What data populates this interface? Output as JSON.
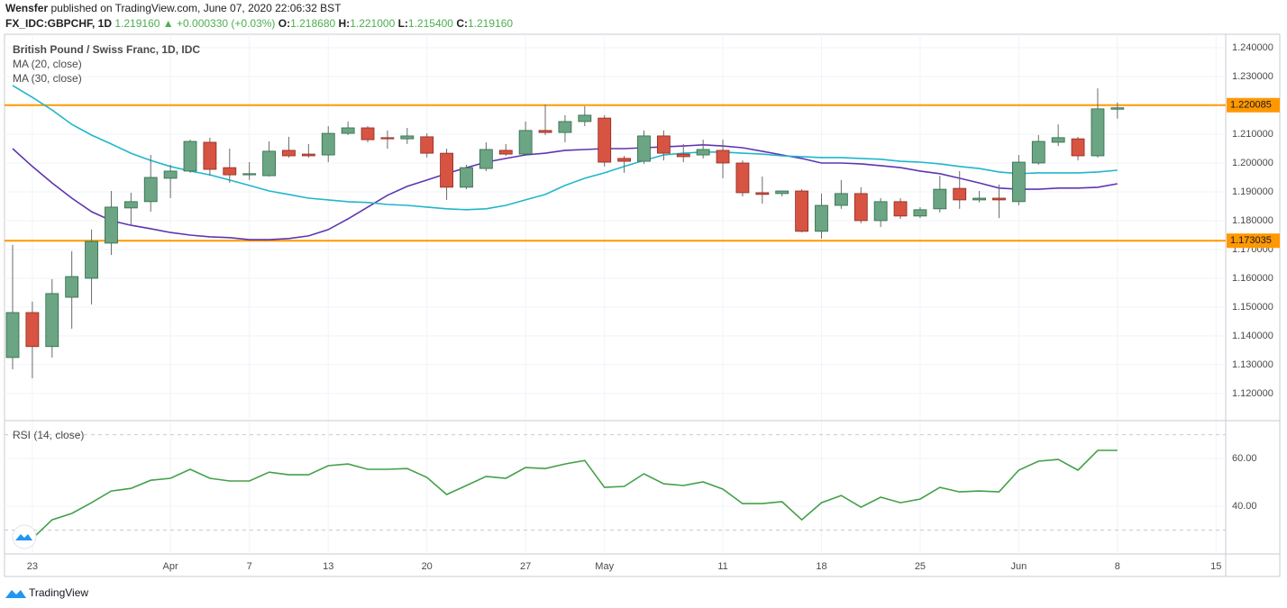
{
  "header": {
    "author": "Wensfer",
    "published": "published on TradingView.com, June 07, 2020 22:06:32 BST",
    "symbol": "FX_IDC:GBPCHF, 1D",
    "last": "1.219160",
    "arrow": "▲",
    "change": "+0.000330 (+0.03%)",
    "ohlc": [
      {
        "key": "O:",
        "value": "1.218680"
      },
      {
        "key": "H:",
        "value": "1.221000"
      },
      {
        "key": "L:",
        "value": "1.215400"
      },
      {
        "key": "C:",
        "value": "1.219160"
      }
    ]
  },
  "footer": "TradingView",
  "chart_data": [
    {
      "type": "candlestick",
      "title": "British Pound / Swiss Franc, 1D, IDC",
      "up_color": "#6ba583",
      "down_color": "#d75442",
      "categories": [
        null,
        "23",
        null,
        null,
        null,
        null,
        null,
        null,
        "Apr",
        null,
        null,
        null,
        "7",
        null,
        null,
        null,
        "13",
        null,
        null,
        null,
        null,
        "20",
        null,
        null,
        null,
        null,
        "27",
        null,
        null,
        null,
        "May",
        null,
        null,
        null,
        null,
        null,
        "11",
        null,
        null,
        null,
        null,
        "18",
        null,
        null,
        null,
        null,
        "25",
        null,
        null,
        null,
        null,
        "Jun",
        null,
        null,
        null,
        null,
        "8",
        null,
        null,
        null,
        null,
        "15"
      ],
      "open": [
        1.1325,
        1.1481,
        1.1363,
        1.1534,
        1.16,
        1.1722,
        1.1844,
        1.1866,
        1.1947,
        1.1972,
        1.2072,
        1.1984,
        1.1959,
        1.1956,
        1.2044,
        1.2031,
        1.2028,
        1.2103,
        1.2122,
        1.2088,
        1.2084,
        1.2091,
        1.2034,
        1.1916,
        1.1981,
        1.2044,
        1.2031,
        1.2113,
        1.2106,
        1.2144,
        1.2156,
        1.2016,
        1.2006,
        1.2094,
        1.2031,
        1.2028,
        1.2044,
        1.2,
        1.1897,
        1.1894,
        1.1903,
        1.1763,
        1.1853,
        1.1894,
        1.18,
        1.1866,
        1.1816,
        1.1841,
        1.1912,
        1.1872,
        1.1878,
        1.1866,
        1.2,
        1.2072,
        1.2084,
        1.2025,
        1.21868,
        null,
        null,
        null,
        null,
        null
      ],
      "high": [
        1.1716,
        1.1519,
        1.1597,
        1.1694,
        1.1769,
        1.1903,
        1.1897,
        1.2028,
        1.1994,
        1.2081,
        1.2088,
        1.205,
        1.2003,
        1.2075,
        1.2091,
        1.2066,
        1.2128,
        1.2144,
        1.2128,
        1.2113,
        1.2122,
        1.2103,
        1.205,
        1.1994,
        1.2072,
        1.2066,
        1.2144,
        1.2203,
        1.2166,
        1.2197,
        1.2166,
        1.2025,
        1.2113,
        1.2113,
        1.2066,
        1.2081,
        1.2081,
        1.2009,
        1.1953,
        1.1903,
        1.1909,
        1.1894,
        1.1941,
        1.1916,
        1.1878,
        1.1878,
        1.1847,
        1.1956,
        1.1972,
        1.1903,
        1.1925,
        1.2028,
        1.2097,
        1.2134,
        1.2091,
        1.2259,
        1.221,
        null,
        null,
        null,
        null,
        null
      ],
      "low": [
        1.1284,
        1.1253,
        1.1325,
        1.1425,
        1.1509,
        1.1681,
        1.1784,
        1.1831,
        1.1878,
        1.1966,
        1.1956,
        1.1931,
        1.1941,
        1.1953,
        1.2019,
        1.2019,
        1.2003,
        1.2097,
        1.2072,
        1.205,
        1.2066,
        1.2019,
        1.1872,
        1.1909,
        1.1972,
        1.2025,
        1.2028,
        1.2097,
        1.2072,
        1.2128,
        1.1988,
        1.1966,
        1.1997,
        1.2009,
        1.2003,
        1.2016,
        1.1947,
        1.1884,
        1.1859,
        1.1884,
        1.1759,
        1.1738,
        1.1841,
        1.1791,
        1.1778,
        1.1806,
        1.1809,
        1.1828,
        1.1841,
        1.1863,
        1.1809,
        1.1853,
        1.1994,
        1.2059,
        1.2009,
        1.2019,
        1.2154,
        null,
        null,
        null,
        null,
        null
      ],
      "close": [
        1.1481,
        1.1363,
        1.1547,
        1.1606,
        1.1728,
        1.1847,
        1.1866,
        1.195,
        1.1972,
        1.2075,
        1.1978,
        1.1959,
        1.1963,
        1.2041,
        1.2025,
        1.2025,
        1.2103,
        1.2122,
        1.2081,
        1.2084,
        1.2094,
        1.2034,
        1.1916,
        1.1984,
        1.2047,
        1.2031,
        1.2113,
        1.2106,
        1.2144,
        1.2166,
        1.2003,
        1.2006,
        1.2094,
        1.2034,
        1.2022,
        1.2047,
        1.2,
        1.1897,
        1.1891,
        1.1903,
        1.1763,
        1.1853,
        1.1894,
        1.18,
        1.1866,
        1.1816,
        1.1838,
        1.1909,
        1.1872,
        1.1878,
        1.1872,
        1.2003,
        1.2075,
        1.2088,
        1.2025,
        1.2188,
        1.21916,
        null,
        null,
        null,
        null,
        null
      ],
      "series": [
        {
          "name": "MA (20, close)",
          "color": "#5e35b1",
          "values": [
            1.205,
            1.1988,
            1.1931,
            1.1878,
            1.1831,
            1.18,
            1.1784,
            1.1772,
            1.1759,
            1.175,
            1.1744,
            1.1741,
            1.1734,
            1.1734,
            1.1738,
            1.1747,
            1.1769,
            1.1806,
            1.1847,
            1.1888,
            1.1919,
            1.1941,
            1.1963,
            1.1984,
            1.2003,
            1.2016,
            1.2028,
            1.2034,
            1.2044,
            1.2047,
            1.205,
            1.205,
            1.2053,
            1.2056,
            1.2059,
            1.2063,
            1.2059,
            1.2053,
            1.2041,
            1.2028,
            1.2016,
            1.2,
            1.2,
            1.1997,
            1.1991,
            1.1984,
            1.1972,
            1.1963,
            1.1947,
            1.1931,
            1.1913,
            1.1909,
            1.1909,
            1.1913,
            1.1913,
            1.1916,
            1.1928,
            null,
            null,
            null,
            null,
            null
          ]
        },
        {
          "name": "MA (30, close)",
          "color": "#1fb6cc",
          "values": [
            1.2269,
            1.2228,
            1.2184,
            1.2134,
            1.2097,
            1.2066,
            1.2034,
            1.2009,
            1.1988,
            1.1972,
            1.1959,
            1.1941,
            1.1922,
            1.1903,
            1.1891,
            1.1878,
            1.1872,
            1.1866,
            1.1863,
            1.1856,
            1.1853,
            1.1847,
            1.1841,
            1.1838,
            1.1841,
            1.1853,
            1.1872,
            1.1891,
            1.1922,
            1.1947,
            1.1966,
            1.1988,
            1.2009,
            1.2028,
            1.2034,
            1.2038,
            1.2038,
            1.2034,
            1.2031,
            1.2025,
            1.2022,
            1.2019,
            1.2019,
            1.2016,
            1.2013,
            1.2006,
            1.2003,
            1.1997,
            1.1988,
            1.1981,
            1.1969,
            1.1963,
            1.1966,
            1.1966,
            1.1966,
            1.1969,
            1.1975,
            null,
            null,
            null,
            null,
            null
          ]
        }
      ],
      "levels": [
        1.220085,
        1.173035
      ],
      "level_color": "#ff9800",
      "ylim": [
        1.1109,
        1.2447
      ],
      "yticks": [
        {
          "value": 1.12,
          "label": "1.120000"
        },
        {
          "value": 1.13,
          "label": "1.130000"
        },
        {
          "value": 1.14,
          "label": "1.140000"
        },
        {
          "value": 1.15,
          "label": "1.150000"
        },
        {
          "value": 1.16,
          "label": "1.160000"
        },
        {
          "value": 1.17,
          "label": "1.170000"
        },
        {
          "value": 1.18,
          "label": "1.180000"
        },
        {
          "value": 1.19,
          "label": "1.190000"
        },
        {
          "value": 1.2,
          "label": "1.200000"
        },
        {
          "value": 1.21,
          "label": "1.210000"
        },
        {
          "value": 1.22,
          "label": "1.220000"
        },
        {
          "value": 1.23,
          "label": "1.230000"
        },
        {
          "value": 1.24,
          "label": "1.240000"
        }
      ],
      "grid": true
    },
    {
      "type": "line",
      "title": "RSI (14, close)",
      "color": "#43a047",
      "values": [
        null,
        26.4,
        34.3,
        37,
        41.5,
        46.4,
        47.5,
        50.9,
        51.7,
        55.5,
        51.7,
        50.6,
        50.6,
        54.3,
        53.2,
        53.2,
        57,
        57.7,
        55.5,
        55.5,
        55.8,
        52.1,
        44.9,
        48.7,
        52.5,
        51.7,
        56.2,
        55.8,
        57.7,
        59.2,
        47.9,
        48.3,
        53.6,
        49.4,
        48.7,
        50.2,
        47.2,
        41.1,
        41.1,
        41.9,
        34.3,
        41.5,
        44.5,
        39.6,
        43.8,
        41.5,
        43,
        47.9,
        46,
        46.4,
        46,
        55.1,
        58.9,
        59.6,
        55.1,
        63.4,
        63.4,
        null,
        null,
        null,
        null,
        null
      ],
      "bands": [
        30,
        70
      ],
      "ylim": [
        20,
        75.5
      ],
      "yticks": [
        {
          "value": 40,
          "label": "40.00"
        },
        {
          "value": 60,
          "label": "60.00"
        }
      ],
      "grid": true
    }
  ]
}
